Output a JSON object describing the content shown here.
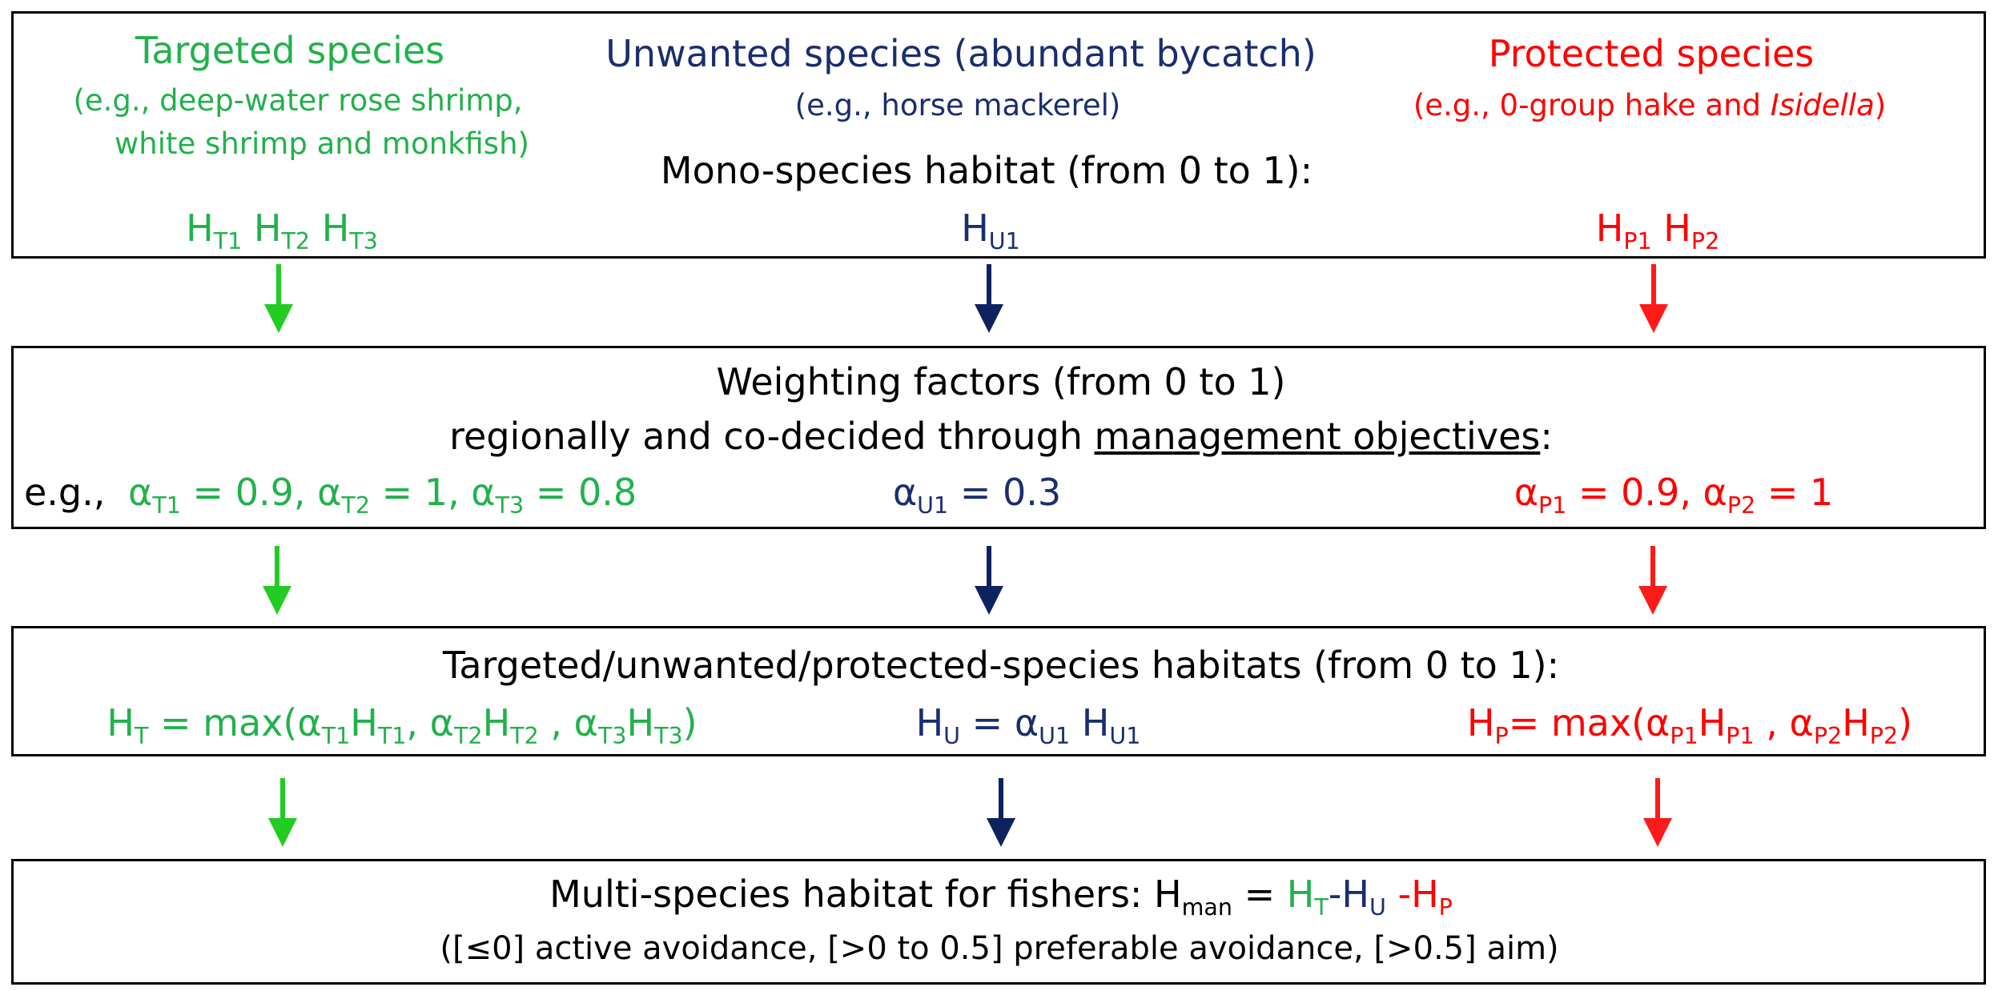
{
  "box1": {
    "targeted": {
      "title": "Targeted species",
      "eg_line1": "(e.g., deep-water rose shrimp,",
      "eg_line2": "white shrimp and monkfish)",
      "habitats": [
        "T1",
        "T2",
        "T3"
      ]
    },
    "unwanted": {
      "title": "Unwanted species (abundant bycatch)",
      "eg": "(e.g., horse mackerel)",
      "habitats": [
        "U1"
      ]
    },
    "protected": {
      "title": "Protected species",
      "eg_prefix": "(e.g., 0-group hake and ",
      "eg_italic": "Isidella",
      "eg_suffix": ")",
      "habitats": [
        "P1",
        "P2"
      ]
    },
    "mono_label": "Mono-species habitat (from 0 to 1):"
  },
  "box2": {
    "line1": "Weighting factors (from 0 to 1)",
    "line2_prefix": "regionally and co-decided through ",
    "line2_underlined": "management objectives",
    "line2_suffix": ":",
    "eg_label": "e.g.,",
    "targeted_weights": [
      {
        "sub": "T1",
        "value": "0.9"
      },
      {
        "sub": "T2",
        "value": "1"
      },
      {
        "sub": "T3",
        "value": "0.8"
      }
    ],
    "unwanted_weights": [
      {
        "sub": "U1",
        "value": "0.3"
      }
    ],
    "protected_weights": [
      {
        "sub": "P1",
        "value": "0.9"
      },
      {
        "sub": "P2",
        "value": "1"
      }
    ]
  },
  "box3": {
    "title": "Targeted/unwanted/protected-species habitats (from 0 to 1):",
    "targeted_formula": "H_T = max(α_T1H_T1, α_T2H_T2 , α_T3H_T3)",
    "unwanted_formula": "H_U = α_U1 H_U1",
    "protected_formula": "H_P= max(α_P1H_P1 , α_P2H_P2)"
  },
  "box4": {
    "line1_prefix": "Multi-species habitat for fishers: H",
    "line1_sub": "man",
    "line1_eq": " = ",
    "line1_T": "H",
    "line1_T_sub": "T",
    "line1_U": "-H",
    "line1_U_sub": "U",
    "line1_P": " -H",
    "line1_P_sub": "P",
    "line2": "([≤0] active avoidance, [>0 to 0.5] preferable avoidance,  [>0.5] aim)"
  },
  "colors": {
    "targeted": "#22b14c",
    "unwanted": "#1a2e6e",
    "protected": "#ff0000",
    "arrow_targeted": "#22cc22",
    "arrow_unwanted": "#0f2260",
    "arrow_protected": "#ff1a1a"
  }
}
